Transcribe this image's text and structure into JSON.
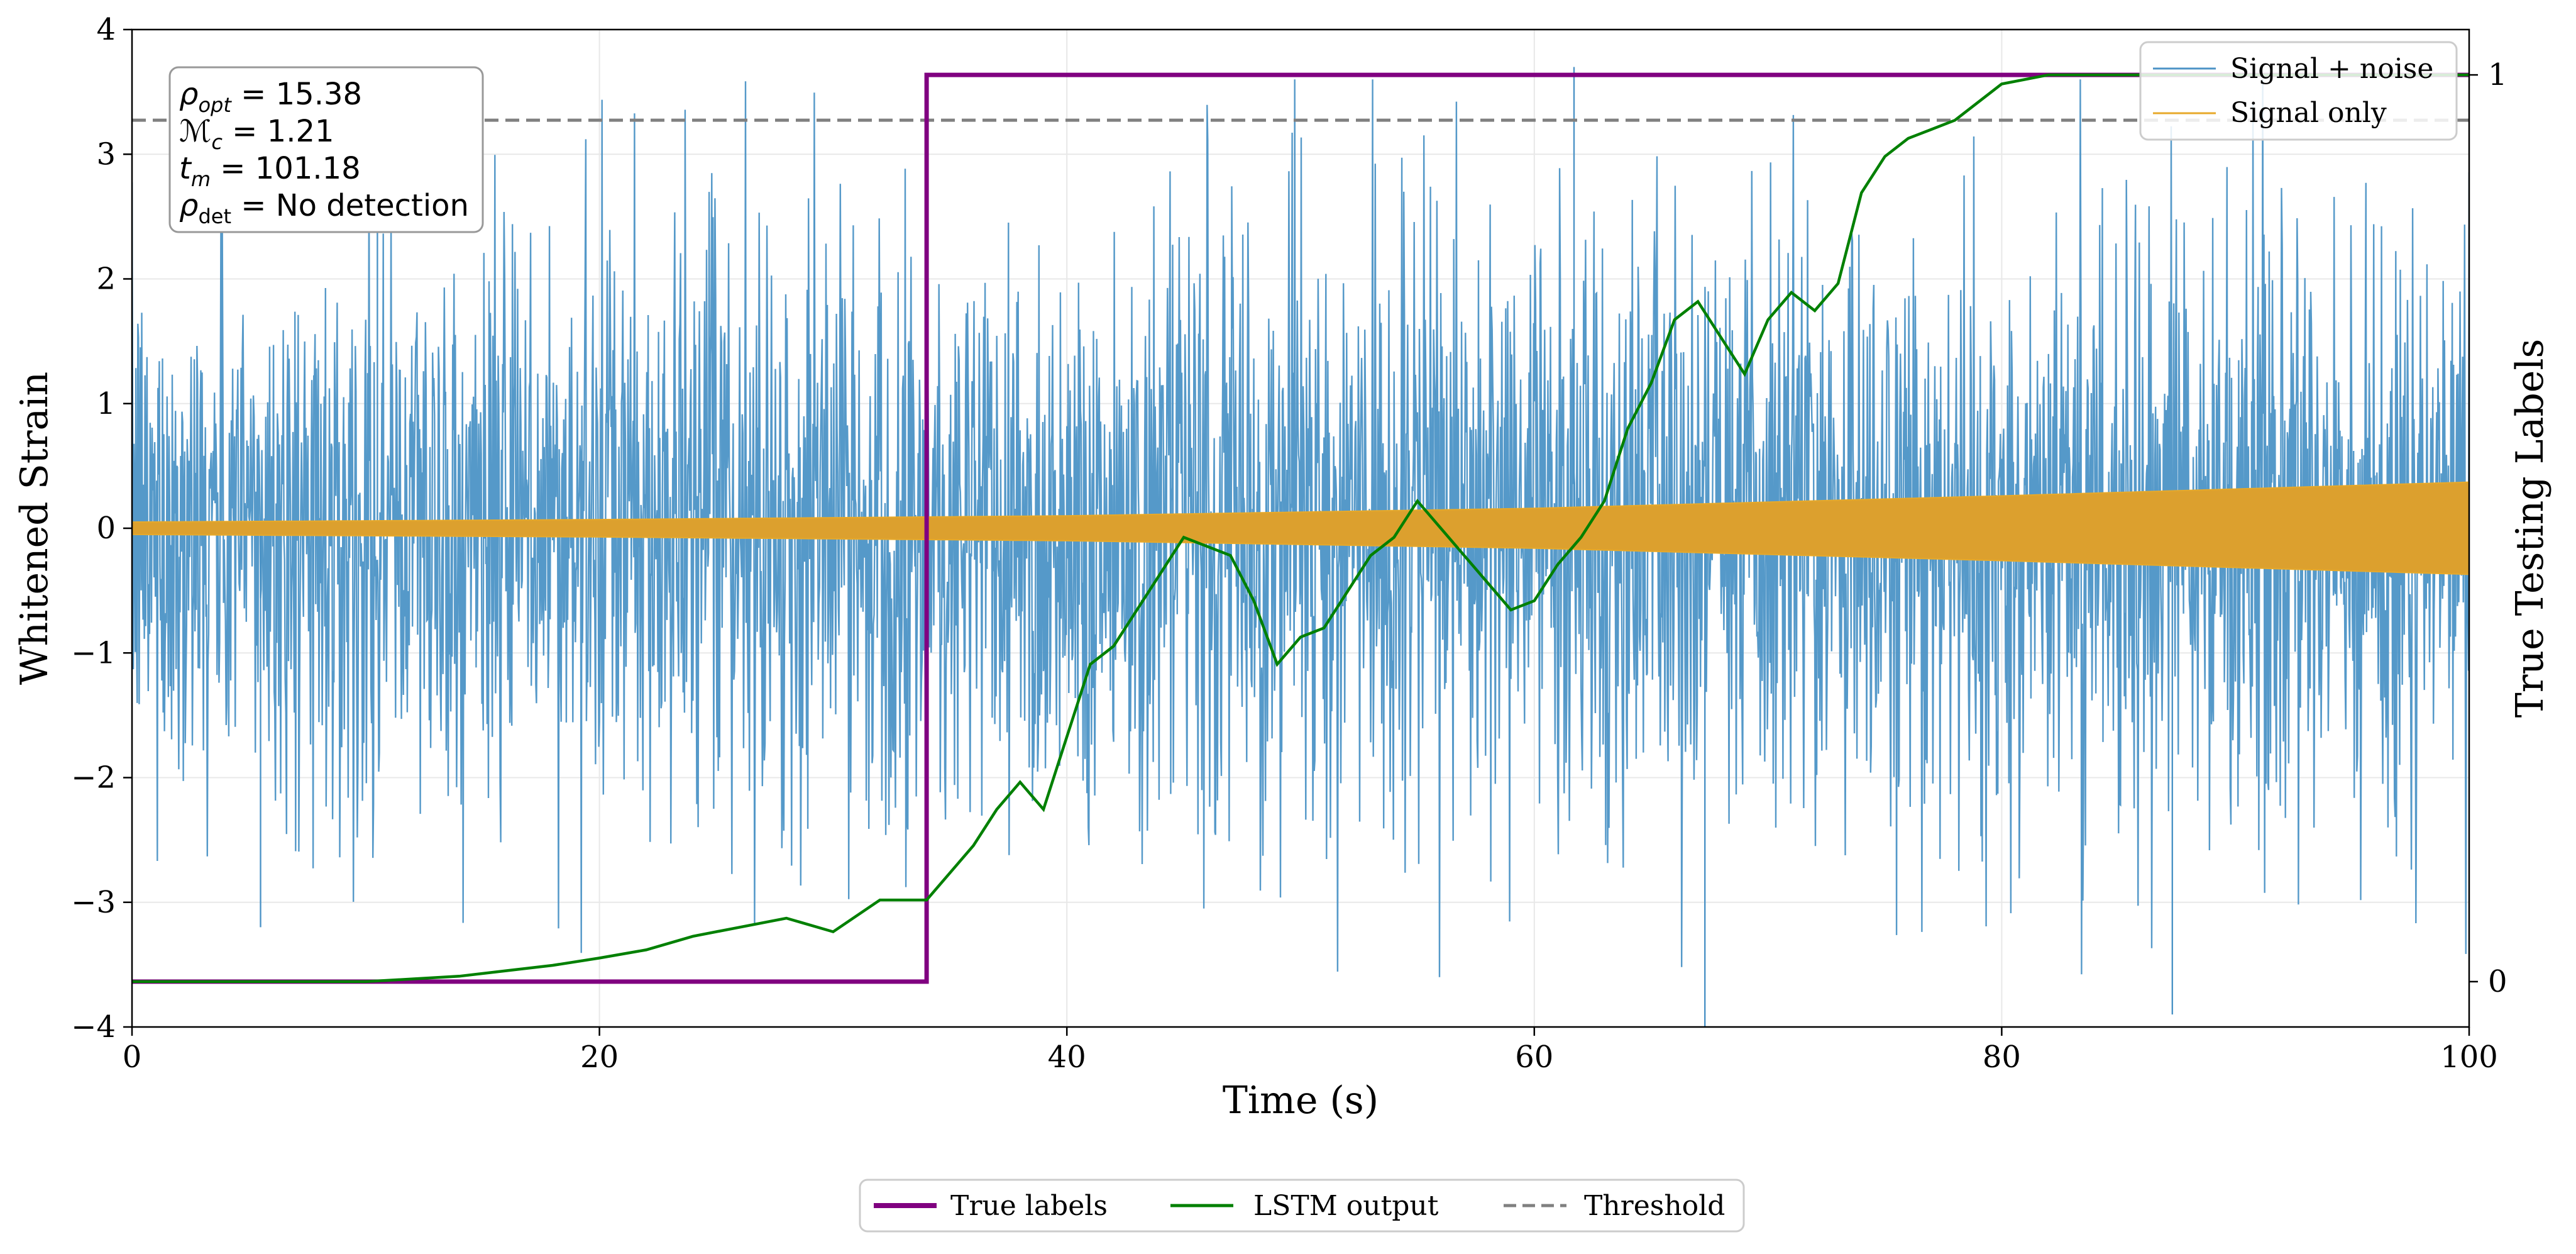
{
  "chart_data": {
    "type": "line",
    "xlabel": "Time (s)",
    "ylabel_left": "Whitened Strain",
    "ylabel_right": "True Testing Labels",
    "xlim": [
      0,
      100
    ],
    "ylim_left": [
      -4,
      4
    ],
    "ylim_right": [
      -0.05,
      1.05
    ],
    "x_ticks": [
      0,
      20,
      40,
      60,
      80,
      100
    ],
    "x_tick_labels": [
      "0",
      "20",
      "40",
      "60",
      "80",
      "100"
    ],
    "y_left_ticks": [
      -4,
      -3,
      -2,
      -1,
      0,
      1,
      2,
      3,
      4
    ],
    "y_left_tick_labels": [
      "−4",
      "−3",
      "−2",
      "−1",
      "0",
      "1",
      "2",
      "3",
      "4"
    ],
    "y_right_ticks": [
      0,
      1
    ],
    "y_right_tick_labels": [
      "0",
      "1"
    ],
    "grid": true,
    "threshold": 0.95,
    "annotation": {
      "rho_opt_value": "15.38",
      "mc_value": "1.21",
      "tm_value": "101.18",
      "rho_det_value": "No detection"
    },
    "upper_legend": [
      {
        "label": "Signal + noise",
        "color": "#4c93c6"
      },
      {
        "label": "Signal only",
        "color": "#e7a92a"
      }
    ],
    "lower_legend": [
      {
        "label": "True labels",
        "color": "#800080",
        "style": "solid"
      },
      {
        "label": "LSTM output",
        "color": "#008000",
        "style": "solid"
      },
      {
        "label": "Threshold",
        "color": "#808080",
        "style": "dashed"
      }
    ],
    "signal_plus_noise": {
      "description_values": "noise band roughly spanning -3.5 to 3.7 whitened strain with spikes",
      "typical_envelope": [
        {
          "x": 0,
          "lo": -2.2,
          "hi": 2.0
        },
        {
          "x": 20,
          "lo": -2.4,
          "hi": 2.4
        },
        {
          "x": 40,
          "lo": -2.5,
          "hi": 2.5
        },
        {
          "x": 60,
          "lo": -2.5,
          "hi": 2.5
        },
        {
          "x": 80,
          "lo": -2.5,
          "hi": 2.5
        },
        {
          "x": 100,
          "lo": -2.5,
          "hi": 2.5
        }
      ],
      "spikes": [
        {
          "x": 61.7,
          "y": 3.7
        },
        {
          "x": 67.3,
          "y": -4.0
        },
        {
          "x": 87.3,
          "y": -3.9
        },
        {
          "x": 10.5,
          "y": 3.3
        },
        {
          "x": 5.5,
          "y": -3.2
        }
      ],
      "color": "#4c93c6"
    },
    "signal_only": {
      "amplitude": [
        {
          "x": 0,
          "a": 0.05
        },
        {
          "x": 20,
          "a": 0.07
        },
        {
          "x": 40,
          "a": 0.1
        },
        {
          "x": 60,
          "a": 0.16
        },
        {
          "x": 80,
          "a": 0.26
        },
        {
          "x": 100,
          "a": 0.37
        }
      ],
      "color": "#e7a92a"
    },
    "true_labels": {
      "x": [
        0,
        34,
        34,
        100
      ],
      "y": [
        0,
        0,
        1,
        1
      ],
      "color": "#800080"
    },
    "lstm_output": {
      "x": [
        0,
        10,
        12,
        14,
        16,
        18,
        20,
        22,
        24,
        26,
        28,
        30,
        32,
        34,
        36,
        37,
        38,
        39,
        40,
        41,
        42,
        43,
        44,
        45,
        46,
        47,
        48,
        49,
        50,
        51,
        52,
        53,
        54,
        55,
        56,
        57,
        58,
        59,
        60,
        61,
        62,
        63,
        64,
        65,
        66,
        67,
        68,
        69,
        70,
        71,
        72,
        73,
        74,
        75,
        76,
        77,
        78,
        79,
        80,
        82,
        85,
        90,
        95,
        100
      ],
      "y": [
        0.0,
        0.0,
        0.003,
        0.006,
        0.012,
        0.018,
        0.026,
        0.035,
        0.05,
        0.06,
        0.07,
        0.055,
        0.09,
        0.09,
        0.15,
        0.19,
        0.22,
        0.19,
        0.27,
        0.35,
        0.37,
        0.41,
        0.45,
        0.49,
        0.48,
        0.47,
        0.42,
        0.35,
        0.38,
        0.39,
        0.43,
        0.47,
        0.49,
        0.53,
        0.5,
        0.47,
        0.44,
        0.41,
        0.42,
        0.46,
        0.49,
        0.53,
        0.61,
        0.66,
        0.73,
        0.75,
        0.71,
        0.67,
        0.73,
        0.76,
        0.74,
        0.77,
        0.87,
        0.91,
        0.93,
        0.94,
        0.95,
        0.97,
        0.99,
        1.0,
        1.0,
        1.0,
        1.0,
        1.0
      ],
      "color": "#008000"
    }
  }
}
